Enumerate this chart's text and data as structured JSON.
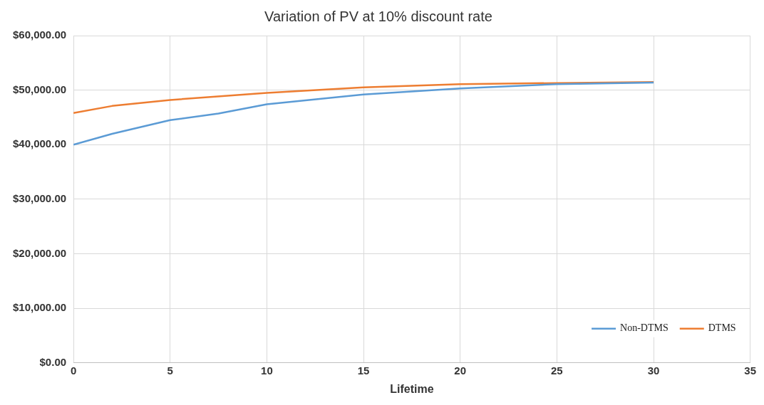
{
  "chart_data": {
    "type": "line",
    "title": "Variation of PV at 10% discount rate",
    "xlabel": "Lifetime",
    "xlim": [
      0,
      35
    ],
    "xticks": [
      0,
      5,
      10,
      15,
      20,
      25,
      30,
      35
    ],
    "ylim": [
      0,
      60000
    ],
    "yticks": [
      {
        "value": 0,
        "label": "$0.00"
      },
      {
        "value": 10000,
        "label": "$10,000.00"
      },
      {
        "value": 20000,
        "label": "$20,000.00"
      },
      {
        "value": 30000,
        "label": "$30,000.00"
      },
      {
        "value": 40000,
        "label": "$40,000.00"
      },
      {
        "value": 50000,
        "label": "$50,000.00"
      },
      {
        "value": 60000,
        "label": "$60,000.00"
      }
    ],
    "grid": true,
    "legend": "bottom right",
    "marker": "none",
    "line_style": "solid",
    "series": [
      {
        "name": "Non-DTMS",
        "color": "#5b9bd5",
        "x": [
          0,
          2,
          5,
          7.5,
          10,
          15,
          20,
          25,
          30
        ],
        "values": [
          40000,
          42000,
          44500,
          45700,
          47400,
          49200,
          50300,
          51100,
          51400
        ]
      },
      {
        "name": "DTMS",
        "color": "#ed7d31",
        "x": [
          0,
          2,
          5,
          10,
          15,
          20,
          25,
          30
        ],
        "values": [
          45800,
          47100,
          48200,
          49500,
          50500,
          51100,
          51300,
          51500
        ]
      }
    ]
  }
}
